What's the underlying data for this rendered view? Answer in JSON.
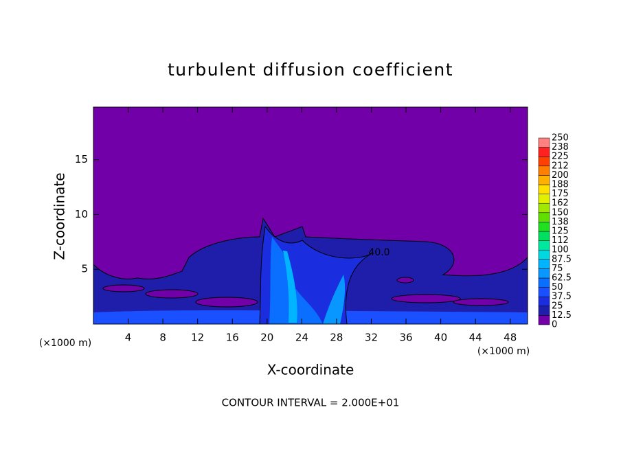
{
  "chart_data": {
    "type": "heatmap",
    "title": "turbulent diffusion coefficient",
    "x_label": "X-coordinate",
    "y_label": "Z-coordinate",
    "x_unit_labels": [
      "(×1000 m)",
      "(×1000 m)"
    ],
    "xlim": [
      0,
      50
    ],
    "ylim": [
      0,
      19.8
    ],
    "xticks": [
      4,
      8,
      12,
      16,
      20,
      24,
      28,
      32,
      36,
      40,
      44,
      48
    ],
    "yticks": [
      5,
      10,
      15
    ],
    "contour_label": "40.0",
    "footnote": "CONTOUR INTERVAL = 2.000E+01",
    "colorbar": {
      "levels": [
        0,
        12.5,
        25,
        37.5,
        50,
        62.5,
        75,
        87.5,
        100,
        112,
        125,
        138,
        150,
        162,
        175,
        188,
        200,
        212,
        225,
        238,
        250
      ],
      "colors": [
        "#7200a8",
        "#1e1eaa",
        "#1a2ee0",
        "#1a50ff",
        "#0a6eff",
        "#0896ff",
        "#00b4ff",
        "#00d8e0",
        "#00e8a0",
        "#00e060",
        "#20e020",
        "#60e000",
        "#a0e800",
        "#e0f000",
        "#ffe000",
        "#ffb000",
        "#ff8000",
        "#ff4000",
        "#ff2020",
        "#ff8080"
      ]
    }
  }
}
